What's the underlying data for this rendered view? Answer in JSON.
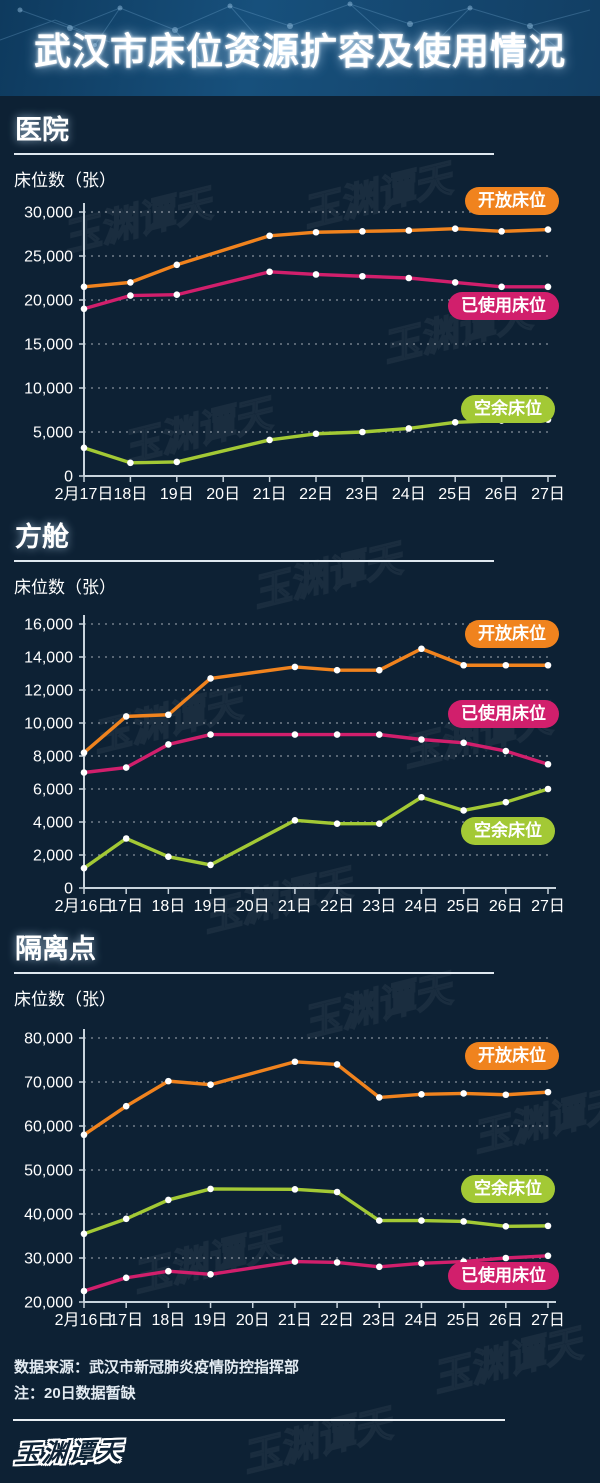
{
  "title": "武汉市床位资源扩容及使用情况",
  "colors": {
    "open": "#F0831E",
    "used": "#D11F6C",
    "free": "#A3C935",
    "background": "#0D2134",
    "header_band": "#16507C"
  },
  "chart_data": [
    {
      "type": "line",
      "section_title": "医院",
      "ylabel": "床位数（张）",
      "x": [
        "2月17日",
        "18日",
        "19日",
        "20日",
        "21日",
        "22日",
        "23日",
        "24日",
        "25日",
        "26日",
        "27日"
      ],
      "ylim": [
        0,
        30000
      ],
      "ytick_step": 5000,
      "grid": "dotted",
      "note": "20日数据暂缺，折线跨越该日",
      "series": [
        {
          "name": "开放床位",
          "color_key": "open",
          "values": [
            21500,
            22000,
            24000,
            null,
            27300,
            27700,
            27800,
            27900,
            28100,
            27800,
            28000
          ]
        },
        {
          "name": "已使用床位",
          "color_key": "used",
          "values": [
            19000,
            20500,
            20600,
            null,
            23200,
            22900,
            22700,
            22500,
            22000,
            21500,
            21500
          ]
        },
        {
          "name": "空余床位",
          "color_key": "free",
          "values": [
            3200,
            1500,
            1600,
            null,
            4100,
            4800,
            5000,
            5400,
            6100,
            6300,
            6400
          ]
        }
      ]
    },
    {
      "type": "line",
      "section_title": "方舱",
      "ylabel": "床位数（张）",
      "x": [
        "2月16日",
        "17日",
        "18日",
        "19日",
        "20日",
        "21日",
        "22日",
        "23日",
        "24日",
        "25日",
        "26日",
        "27日"
      ],
      "ylim": [
        0,
        16000
      ],
      "ytick_step": 2000,
      "grid": "dotted",
      "note": "20日数据暂缺，折线跨越该日",
      "series": [
        {
          "name": "开放床位",
          "color_key": "open",
          "values": [
            8200,
            10400,
            10500,
            12700,
            null,
            13400,
            13200,
            13200,
            14500,
            13500,
            13500,
            13500
          ]
        },
        {
          "name": "已使用床位",
          "color_key": "used",
          "values": [
            7000,
            7300,
            8700,
            9300,
            null,
            9300,
            9300,
            9300,
            9000,
            8800,
            8300,
            7500
          ]
        },
        {
          "name": "空余床位",
          "color_key": "free",
          "values": [
            1200,
            3000,
            1900,
            1400,
            null,
            4100,
            3900,
            3900,
            5500,
            4700,
            5200,
            6000
          ]
        }
      ]
    },
    {
      "type": "line",
      "section_title": "隔离点",
      "ylabel": "床位数（张）",
      "x": [
        "2月16日",
        "17日",
        "18日",
        "19日",
        "20日",
        "21日",
        "22日",
        "23日",
        "24日",
        "25日",
        "26日",
        "27日"
      ],
      "ylim": [
        20000,
        80000
      ],
      "ytick_step": 10000,
      "grid": "dotted",
      "note": "20日数据暂缺，折线跨越该日",
      "series": [
        {
          "name": "开放床位",
          "color_key": "open",
          "values": [
            58000,
            64500,
            70200,
            69400,
            null,
            74600,
            74000,
            66500,
            67200,
            67400,
            67100,
            67700
          ]
        },
        {
          "name": "空余床位",
          "color_key": "free",
          "values": [
            35500,
            38900,
            43200,
            45700,
            null,
            45600,
            45000,
            38500,
            38500,
            38300,
            37200,
            37300
          ]
        },
        {
          "name": "已使用床位",
          "color_key": "used",
          "values": [
            22500,
            25500,
            27000,
            26300,
            null,
            29200,
            29000,
            28000,
            28800,
            29200,
            30000,
            30500
          ]
        }
      ]
    }
  ],
  "footer": {
    "source": "数据来源：武汉市新冠肺炎疫情防控指挥部",
    "note": "注：20日数据暂缺",
    "logo": "玉渊谭天"
  }
}
